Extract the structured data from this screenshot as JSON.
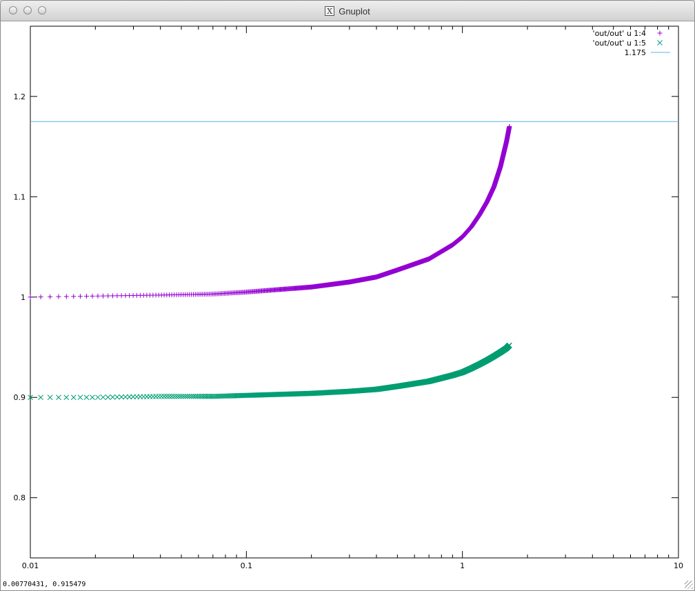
{
  "window": {
    "title": "Gnuplot",
    "title_icon": "x11-icon",
    "buttons": [
      "close",
      "minimize",
      "zoom"
    ]
  },
  "status": {
    "coords_text": "0.00770431,  0.915479"
  },
  "chart_data": {
    "type": "scatter",
    "title": "",
    "xlabel": "",
    "ylabel": "",
    "xscale": "log",
    "xlim": [
      0.01,
      10
    ],
    "ylim": [
      0.74,
      1.27
    ],
    "grid": false,
    "legend_position": "top-right",
    "x_ticks": [
      {
        "value": 0.01,
        "label": "0.01"
      },
      {
        "value": 0.1,
        "label": "0.1"
      },
      {
        "value": 1,
        "label": "1"
      },
      {
        "value": 10,
        "label": "10"
      }
    ],
    "y_ticks": [
      {
        "value": 0.8,
        "label": "0.8"
      },
      {
        "value": 0.9,
        "label": "0.9"
      },
      {
        "value": 1.0,
        "label": "1"
      },
      {
        "value": 1.1,
        "label": "1.1"
      },
      {
        "value": 1.2,
        "label": "1.2"
      }
    ],
    "series": [
      {
        "name": "'out/out' u 1:4",
        "marker": "plus",
        "color": "#9400d3",
        "x": [
          0.01,
          0.02,
          0.04,
          0.07,
          0.1,
          0.2,
          0.3,
          0.4,
          0.5,
          0.7,
          0.9,
          1.0,
          1.1,
          1.2,
          1.3,
          1.4,
          1.5,
          1.6,
          1.65
        ],
        "y": [
          1.0,
          1.001,
          1.002,
          1.003,
          1.005,
          1.01,
          1.015,
          1.02,
          1.027,
          1.038,
          1.052,
          1.06,
          1.07,
          1.082,
          1.095,
          1.11,
          1.13,
          1.155,
          1.17
        ]
      },
      {
        "name": "'out/out' u  1:5",
        "marker": "cross",
        "color": "#009e73",
        "x": [
          0.01,
          0.02,
          0.04,
          0.07,
          0.1,
          0.2,
          0.3,
          0.4,
          0.5,
          0.7,
          0.9,
          1.0,
          1.1,
          1.2,
          1.3,
          1.4,
          1.5,
          1.6,
          1.65
        ],
        "y": [
          0.9,
          0.9,
          0.901,
          0.901,
          0.902,
          0.904,
          0.906,
          0.908,
          0.911,
          0.916,
          0.922,
          0.925,
          0.929,
          0.933,
          0.937,
          0.941,
          0.945,
          0.949,
          0.952
        ]
      },
      {
        "name": "1.175",
        "marker": "line",
        "color": "#56b4e9",
        "x": [
          0.01,
          10
        ],
        "y": [
          1.175,
          1.175
        ]
      }
    ]
  }
}
